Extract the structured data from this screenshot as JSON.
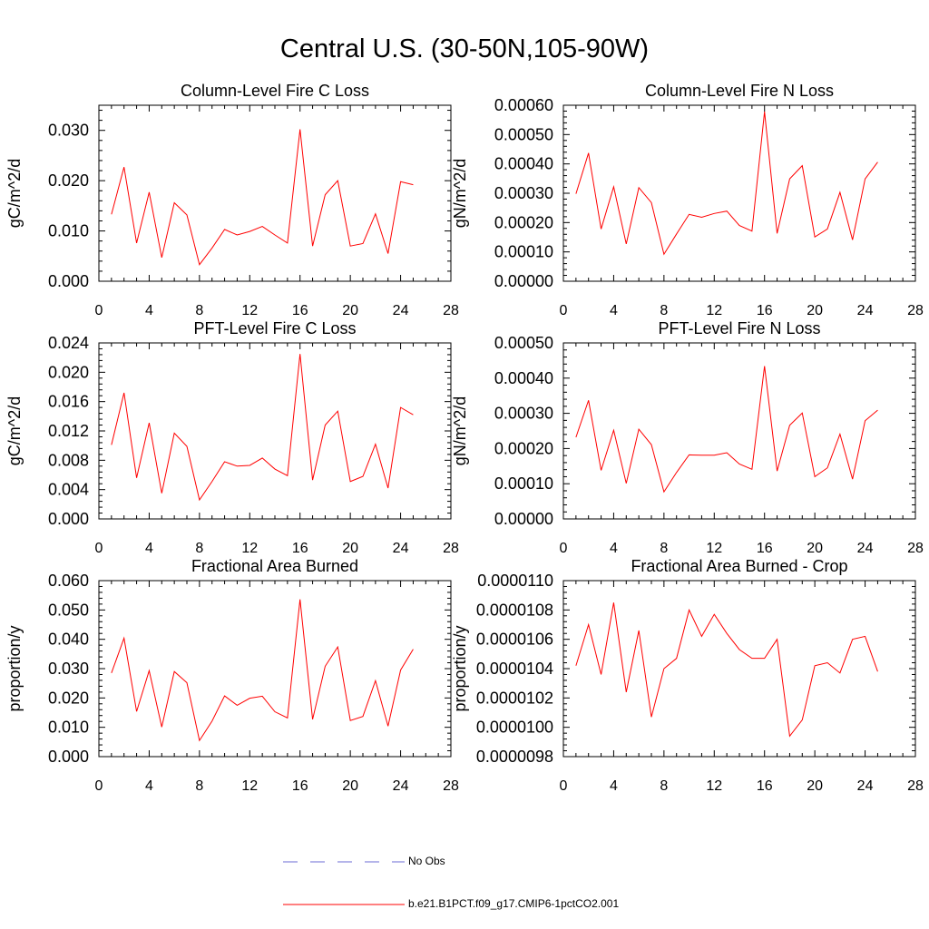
{
  "figure": {
    "title": "Central U.S. (30-50N,105-90W)",
    "line_color": "#ff0000",
    "obs_line_color": "#6b6bd6"
  },
  "legend": {
    "obs_label": "No Obs",
    "model_label": "b.e21.B1PCT.f09_g17.CMIP6-1pctCO2.001"
  },
  "chart_data": [
    {
      "type": "line",
      "title": "Column-Level Fire C Loss",
      "ylabel": "gC/m^2/d",
      "xlim": [
        0,
        28
      ],
      "ylim": [
        0,
        0.035
      ],
      "xticks": [
        0,
        4,
        8,
        12,
        16,
        20,
        24,
        28
      ],
      "xtick_labels": [
        "0",
        "4",
        "8",
        "12",
        "16",
        "20",
        "24",
        "28"
      ],
      "yticks": [
        0,
        0.01,
        0.02,
        0.03
      ],
      "ytick_labels": [
        "0.000",
        "0.010",
        "0.020",
        "0.030"
      ],
      "x": [
        1,
        2,
        3,
        4,
        5,
        6,
        7,
        8,
        9,
        10,
        11,
        12,
        13,
        14,
        15,
        16,
        17,
        18,
        19,
        20,
        21,
        22,
        23,
        24,
        25
      ],
      "series": [
        {
          "values": [
            0.0133,
            0.0227,
            0.0076,
            0.0177,
            0.0047,
            0.0156,
            0.0132,
            0.0033,
            0.0066,
            0.0103,
            0.0092,
            0.0099,
            0.0109,
            0.0092,
            0.0076,
            0.0302,
            0.007,
            0.0172,
            0.02,
            0.007,
            0.0075,
            0.0134,
            0.0055,
            0.0198,
            0.0192
          ]
        }
      ]
    },
    {
      "type": "line",
      "title": "Column-Level Fire N Loss",
      "ylabel": "gN/m^2/d",
      "xlim": [
        0,
        28
      ],
      "ylim": [
        0,
        0.0006
      ],
      "xticks": [
        0,
        4,
        8,
        12,
        16,
        20,
        24,
        28
      ],
      "xtick_labels": [
        "0",
        "4",
        "8",
        "12",
        "16",
        "20",
        "24",
        "28"
      ],
      "yticks": [
        0,
        0.0001,
        0.0002,
        0.0003,
        0.0004,
        0.0005,
        0.0006
      ],
      "ytick_labels": [
        "0.00000",
        "0.00010",
        "0.00020",
        "0.00030",
        "0.00040",
        "0.00050",
        "0.00060"
      ],
      "x": [
        1,
        2,
        3,
        4,
        5,
        6,
        7,
        8,
        9,
        10,
        11,
        12,
        13,
        14,
        15,
        16,
        17,
        18,
        19,
        20,
        21,
        22,
        23,
        24,
        25
      ],
      "series": [
        {
          "values": [
            0.000298,
            0.000437,
            0.000178,
            0.000322,
            0.000127,
            0.000319,
            0.000268,
            9.2e-05,
            0.000161,
            0.000228,
            0.000218,
            0.000231,
            0.000239,
            0.00019,
            0.000171,
            0.000578,
            0.000163,
            0.000349,
            0.000394,
            0.000151,
            0.000178,
            0.000303,
            0.000141,
            0.000349,
            0.000406
          ]
        }
      ]
    },
    {
      "type": "line",
      "title": "PFT-Level Fire C Loss",
      "ylabel": "gC/m^2/d",
      "xlim": [
        0,
        28
      ],
      "ylim": [
        0,
        0.024
      ],
      "xticks": [
        0,
        4,
        8,
        12,
        16,
        20,
        24,
        28
      ],
      "xtick_labels": [
        "0",
        "4",
        "8",
        "12",
        "16",
        "20",
        "24",
        "28"
      ],
      "yticks": [
        0,
        0.004,
        0.008,
        0.012,
        0.016,
        0.02,
        0.024
      ],
      "ytick_labels": [
        "0.000",
        "0.004",
        "0.008",
        "0.012",
        "0.016",
        "0.020",
        "0.024"
      ],
      "x": [
        1,
        2,
        3,
        4,
        5,
        6,
        7,
        8,
        9,
        10,
        11,
        12,
        13,
        14,
        15,
        16,
        17,
        18,
        19,
        20,
        21,
        22,
        23,
        24,
        25
      ],
      "series": [
        {
          "values": [
            0.0101,
            0.0172,
            0.0056,
            0.0131,
            0.0035,
            0.0117,
            0.0099,
            0.0026,
            0.0051,
            0.0078,
            0.0072,
            0.0073,
            0.0083,
            0.0068,
            0.0059,
            0.0225,
            0.0053,
            0.0128,
            0.0147,
            0.0051,
            0.0058,
            0.0102,
            0.0042,
            0.0152,
            0.0142
          ]
        }
      ]
    },
    {
      "type": "line",
      "title": "PFT-Level Fire N Loss",
      "ylabel": "gN/m^2/d",
      "xlim": [
        0,
        28
      ],
      "ylim": [
        0,
        0.0005
      ],
      "xticks": [
        0,
        4,
        8,
        12,
        16,
        20,
        24,
        28
      ],
      "xtick_labels": [
        "0",
        "4",
        "8",
        "12",
        "16",
        "20",
        "24",
        "28"
      ],
      "yticks": [
        0,
        0.0001,
        0.0002,
        0.0003,
        0.0004,
        0.0005
      ],
      "ytick_labels": [
        "0.00000",
        "0.00010",
        "0.00020",
        "0.00030",
        "0.00040",
        "0.00050"
      ],
      "x": [
        1,
        2,
        3,
        4,
        5,
        6,
        7,
        8,
        9,
        10,
        11,
        12,
        13,
        14,
        15,
        16,
        17,
        18,
        19,
        20,
        21,
        22,
        23,
        24,
        25
      ],
      "series": [
        {
          "values": [
            0.000232,
            0.000337,
            0.000138,
            0.000252,
            0.000101,
            0.000255,
            0.000211,
            7.7e-05,
            0.000132,
            0.000182,
            0.000181,
            0.000181,
            0.000188,
            0.000156,
            0.000141,
            0.000434,
            0.000136,
            0.000266,
            0.000301,
            0.00012,
            0.000145,
            0.000241,
            0.000113,
            0.000279,
            0.000309
          ]
        }
      ]
    },
    {
      "type": "line",
      "title": "Fractional Area Burned",
      "ylabel": "proportion/y",
      "xlim": [
        0,
        28
      ],
      "ylim": [
        0,
        0.06
      ],
      "xticks": [
        0,
        4,
        8,
        12,
        16,
        20,
        24,
        28
      ],
      "xtick_labels": [
        "0",
        "4",
        "8",
        "12",
        "16",
        "20",
        "24",
        "28"
      ],
      "yticks": [
        0,
        0.01,
        0.02,
        0.03,
        0.04,
        0.05,
        0.06
      ],
      "ytick_labels": [
        "0.000",
        "0.010",
        "0.020",
        "0.030",
        "0.040",
        "0.050",
        "0.060"
      ],
      "x": [
        1,
        2,
        3,
        4,
        5,
        6,
        7,
        8,
        9,
        10,
        11,
        12,
        13,
        14,
        15,
        16,
        17,
        18,
        19,
        20,
        21,
        22,
        23,
        24,
        25
      ],
      "series": [
        {
          "values": [
            0.0285,
            0.0404,
            0.0154,
            0.0293,
            0.0101,
            0.029,
            0.0252,
            0.0055,
            0.0121,
            0.0207,
            0.0175,
            0.0199,
            0.0206,
            0.0153,
            0.0132,
            0.0536,
            0.0127,
            0.0308,
            0.0374,
            0.0123,
            0.0137,
            0.0259,
            0.0104,
            0.0295,
            0.0366
          ]
        }
      ]
    },
    {
      "type": "line",
      "title": "Fractional Area Burned - Crop",
      "ylabel": "proportion/y",
      "xlim": [
        0,
        28
      ],
      "ylim": [
        9.8e-06,
        1.1e-05
      ],
      "xticks": [
        0,
        4,
        8,
        12,
        16,
        20,
        24,
        28
      ],
      "xtick_labels": [
        "0",
        "4",
        "8",
        "12",
        "16",
        "20",
        "24",
        "28"
      ],
      "yticks": [
        9.8e-06,
        1e-05,
        1.02e-05,
        1.04e-05,
        1.06e-05,
        1.08e-05,
        1.1e-05
      ],
      "ytick_labels": [
        "0.0000098",
        "0.0000100",
        "0.0000102",
        "0.0000104",
        "0.0000106",
        "0.0000108",
        "0.0000110"
      ],
      "x": [
        1,
        2,
        3,
        4,
        5,
        6,
        7,
        8,
        9,
        10,
        11,
        12,
        13,
        14,
        15,
        16,
        17,
        18,
        19,
        20,
        21,
        22,
        23,
        24,
        25
      ],
      "series": [
        {
          "values": [
            1.042e-05,
            1.07e-05,
            1.036e-05,
            1.085e-05,
            1.024e-05,
            1.066e-05,
            1.007e-05,
            1.04e-05,
            1.047e-05,
            1.08e-05,
            1.062e-05,
            1.077e-05,
            1.064e-05,
            1.053e-05,
            1.047e-05,
            1.047e-05,
            1.06e-05,
            9.94e-06,
            1.005e-05,
            1.042e-05,
            1.044e-05,
            1.037e-05,
            1.06e-05,
            1.062e-05,
            1.038e-05
          ]
        }
      ]
    }
  ]
}
